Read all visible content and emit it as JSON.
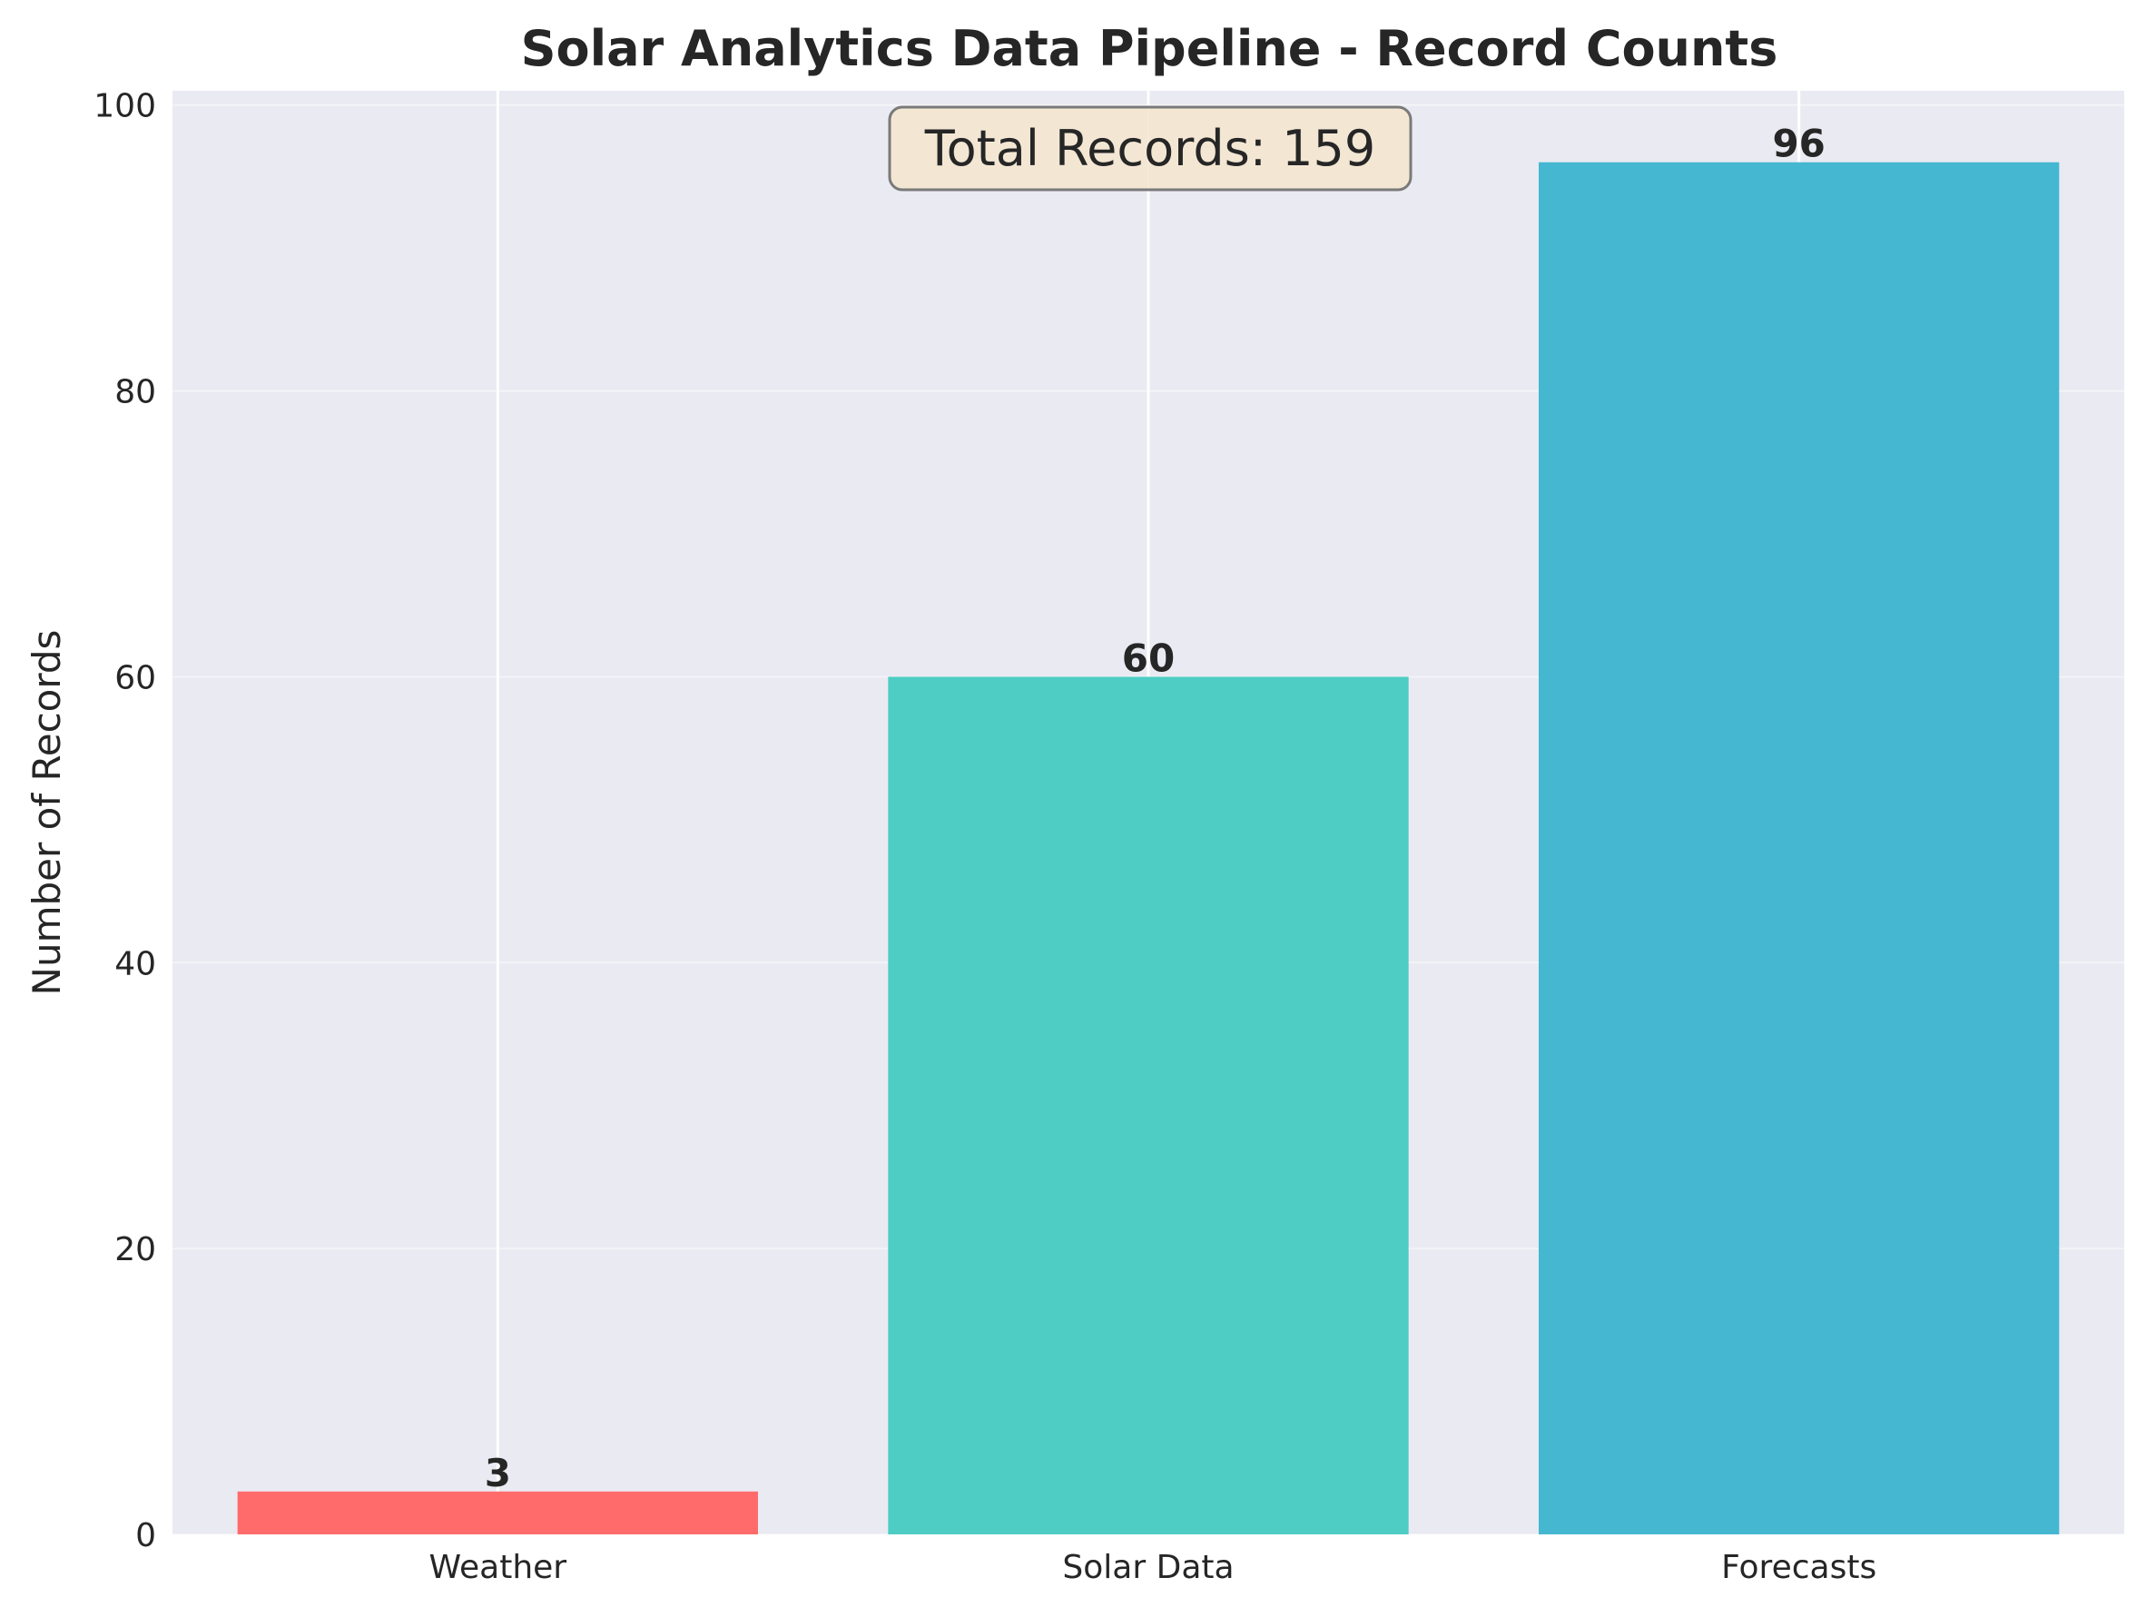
{
  "chart_data": {
    "type": "bar",
    "title": "Solar Analytics Data Pipeline - Record Counts",
    "xlabel": "",
    "ylabel": "Number of Records",
    "categories": [
      "Weather",
      "Solar Data",
      "Forecasts"
    ],
    "values": [
      3,
      60,
      96
    ],
    "colors": [
      "#ff6b6b",
      "#4ecdc4",
      "#45b7d1"
    ],
    "ylim": [
      0,
      101
    ],
    "yticks": [
      0,
      20,
      40,
      60,
      80,
      100
    ],
    "grid": true,
    "annotation": "Total Records: 159"
  }
}
